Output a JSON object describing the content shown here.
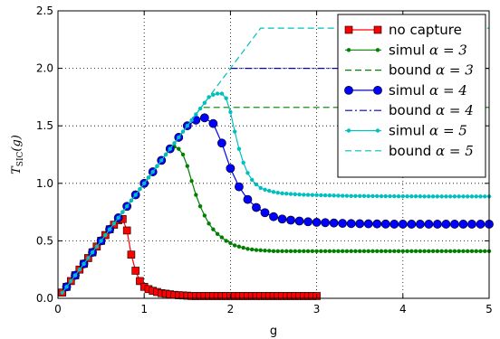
{
  "chart_data": {
    "type": "line",
    "xlabel": "g",
    "ylabel": "T",
    "ylabel_sub": "SIC",
    "ylabel_arg": "(g)",
    "xlim": [
      0,
      5
    ],
    "ylim": [
      0,
      2.5
    ],
    "x_ticks": [
      0,
      1,
      2,
      3,
      4,
      5
    ],
    "x_tick_labels": [
      "0",
      "1",
      "2",
      "3",
      "4",
      "5"
    ],
    "y_ticks": [
      0,
      0.5,
      1.0,
      1.5,
      2.0,
      2.5
    ],
    "y_tick_labels": [
      "0.0",
      "0.5",
      "1.0",
      "1.5",
      "2.0",
      "2.5"
    ],
    "grid": true,
    "legend_position": "top-right",
    "series": [
      {
        "name": "no capture",
        "legend_text": "no capture",
        "legend_math": "",
        "style": "line-square",
        "color": "#ff0000",
        "x": [
          0.05,
          0.1,
          0.15,
          0.2,
          0.25,
          0.3,
          0.35,
          0.4,
          0.45,
          0.5,
          0.55,
          0.6,
          0.65,
          0.7,
          0.75,
          0.8,
          0.85,
          0.9,
          0.95,
          1.0,
          1.05,
          1.1,
          1.15,
          1.2,
          1.25,
          1.3,
          1.35,
          1.4,
          1.45,
          1.5,
          1.55,
          1.6,
          1.65,
          1.7,
          1.75,
          1.8,
          1.85,
          1.9,
          1.95,
          2.0,
          2.05,
          2.1,
          2.15,
          2.2,
          2.25,
          2.3,
          2.35,
          2.4,
          2.45,
          2.5,
          2.55,
          2.6,
          2.65,
          2.7,
          2.75,
          2.8,
          2.85,
          2.9,
          2.95,
          3.0
        ],
        "y": [
          0.05,
          0.1,
          0.15,
          0.2,
          0.25,
          0.3,
          0.35,
          0.4,
          0.45,
          0.5,
          0.55,
          0.6,
          0.64,
          0.68,
          0.69,
          0.59,
          0.38,
          0.24,
          0.15,
          0.1,
          0.08,
          0.065,
          0.055,
          0.045,
          0.04,
          0.035,
          0.03,
          0.027,
          0.025,
          0.023,
          0.02,
          0.02,
          0.02,
          0.02,
          0.02,
          0.02,
          0.02,
          0.02,
          0.02,
          0.02,
          0.02,
          0.02,
          0.02,
          0.02,
          0.02,
          0.02,
          0.02,
          0.02,
          0.02,
          0.02,
          0.02,
          0.02,
          0.02,
          0.02,
          0.02,
          0.02,
          0.02,
          0.02,
          0.02,
          0.02
        ]
      },
      {
        "name": "simul alpha=3",
        "legend_text": "simul ",
        "legend_math": "α = 3",
        "style": "line-dot",
        "color": "#008000",
        "x": [
          0.05,
          0.1,
          0.15,
          0.2,
          0.25,
          0.3,
          0.35,
          0.4,
          0.45,
          0.5,
          0.55,
          0.6,
          0.65,
          0.7,
          0.75,
          0.8,
          0.85,
          0.9,
          0.95,
          1.0,
          1.05,
          1.1,
          1.15,
          1.2,
          1.25,
          1.3,
          1.35,
          1.4,
          1.45,
          1.5,
          1.55,
          1.6,
          1.65,
          1.7,
          1.75,
          1.8,
          1.85,
          1.9,
          1.95,
          2.0,
          2.05,
          2.1,
          2.15,
          2.2,
          2.25,
          2.3,
          2.35,
          2.4,
          2.45,
          2.5,
          2.55,
          2.6,
          2.65,
          2.7,
          2.75,
          2.8,
          2.85,
          2.9,
          2.95,
          3.0,
          3.05,
          3.1,
          3.15,
          3.2,
          3.25,
          3.3,
          3.35,
          3.4,
          3.45,
          3.5,
          3.55,
          3.6,
          3.65,
          3.7,
          3.75,
          3.8,
          3.85,
          3.9,
          3.95,
          4.0,
          4.05,
          4.1,
          4.15,
          4.2,
          4.25,
          4.3,
          4.35,
          4.4,
          4.45,
          4.5,
          4.55,
          4.6,
          4.65,
          4.7,
          4.75,
          4.8,
          4.85,
          4.9,
          4.95,
          5.0
        ],
        "y": [
          0.05,
          0.1,
          0.15,
          0.2,
          0.25,
          0.3,
          0.35,
          0.4,
          0.45,
          0.5,
          0.55,
          0.6,
          0.65,
          0.7,
          0.75,
          0.8,
          0.85,
          0.9,
          0.95,
          1.0,
          1.05,
          1.1,
          1.15,
          1.2,
          1.25,
          1.3,
          1.32,
          1.3,
          1.25,
          1.15,
          1.02,
          0.9,
          0.8,
          0.72,
          0.65,
          0.6,
          0.56,
          0.53,
          0.5,
          0.48,
          0.46,
          0.45,
          0.44,
          0.43,
          0.425,
          0.42,
          0.418,
          0.415,
          0.413,
          0.41,
          0.41,
          0.41,
          0.41,
          0.41,
          0.41,
          0.41,
          0.41,
          0.41,
          0.41,
          0.41,
          0.41,
          0.41,
          0.41,
          0.41,
          0.41,
          0.41,
          0.41,
          0.41,
          0.41,
          0.41,
          0.41,
          0.41,
          0.41,
          0.41,
          0.41,
          0.41,
          0.41,
          0.41,
          0.41,
          0.41,
          0.41,
          0.41,
          0.41,
          0.41,
          0.41,
          0.41,
          0.41,
          0.41,
          0.41,
          0.41,
          0.41,
          0.41,
          0.41,
          0.41,
          0.41,
          0.41,
          0.41,
          0.41,
          0.41,
          0.41
        ]
      },
      {
        "name": "bound alpha=3",
        "legend_text": "bound ",
        "legend_math": "α = 3",
        "style": "dashed",
        "color": "#008000",
        "x": [
          1.4,
          1.66,
          5.0
        ],
        "y": [
          1.4,
          1.66,
          1.66
        ]
      },
      {
        "name": "simul alpha=4",
        "legend_text": "simul ",
        "legend_math": "α = 4",
        "style": "line-circle",
        "color": "#0000ff",
        "x": [
          0.1,
          0.2,
          0.3,
          0.4,
          0.5,
          0.6,
          0.7,
          0.8,
          0.9,
          1.0,
          1.1,
          1.2,
          1.3,
          1.4,
          1.5,
          1.6,
          1.7,
          1.8,
          1.9,
          2.0,
          2.1,
          2.2,
          2.3,
          2.4,
          2.5,
          2.6,
          2.7,
          2.8,
          2.9,
          3.0,
          3.1,
          3.2,
          3.3,
          3.4,
          3.5,
          3.6,
          3.7,
          3.8,
          3.9,
          4.0,
          4.1,
          4.2,
          4.3,
          4.4,
          4.5,
          4.6,
          4.7,
          4.8,
          4.9,
          5.0
        ],
        "y": [
          0.1,
          0.2,
          0.3,
          0.4,
          0.5,
          0.6,
          0.7,
          0.8,
          0.9,
          1.0,
          1.1,
          1.2,
          1.3,
          1.4,
          1.5,
          1.55,
          1.57,
          1.52,
          1.35,
          1.13,
          0.97,
          0.86,
          0.79,
          0.745,
          0.71,
          0.69,
          0.68,
          0.672,
          0.666,
          0.661,
          0.658,
          0.655,
          0.652,
          0.65,
          0.649,
          0.648,
          0.647,
          0.646,
          0.645,
          0.645,
          0.645,
          0.645,
          0.645,
          0.645,
          0.645,
          0.645,
          0.645,
          0.645,
          0.645,
          0.645
        ]
      },
      {
        "name": "bound alpha=4",
        "legend_text": "bound ",
        "legend_math": "α = 4",
        "style": "dashdot",
        "color": "#0000cc",
        "x": [
          2.0,
          5.0
        ],
        "y": [
          2.0,
          2.0
        ]
      },
      {
        "name": "simul alpha=5",
        "legend_text": "simul ",
        "legend_math": "α = 5",
        "style": "line-dot",
        "color": "#00bfbf",
        "x": [
          0.05,
          0.1,
          0.15,
          0.2,
          0.25,
          0.3,
          0.35,
          0.4,
          0.45,
          0.5,
          0.55,
          0.6,
          0.65,
          0.7,
          0.75,
          0.8,
          0.85,
          0.9,
          0.95,
          1.0,
          1.05,
          1.1,
          1.15,
          1.2,
          1.25,
          1.3,
          1.35,
          1.4,
          1.45,
          1.5,
          1.55,
          1.6,
          1.65,
          1.7,
          1.75,
          1.8,
          1.85,
          1.9,
          1.95,
          2.0,
          2.05,
          2.1,
          2.15,
          2.2,
          2.25,
          2.3,
          2.35,
          2.4,
          2.45,
          2.5,
          2.55,
          2.6,
          2.65,
          2.7,
          2.75,
          2.8,
          2.85,
          2.9,
          2.95,
          3.0,
          3.05,
          3.1,
          3.15,
          3.2,
          3.25,
          3.3,
          3.35,
          3.4,
          3.45,
          3.5,
          3.55,
          3.6,
          3.65,
          3.7,
          3.75,
          3.8,
          3.85,
          3.9,
          3.95,
          4.0,
          4.05,
          4.1,
          4.15,
          4.2,
          4.25,
          4.3,
          4.35,
          4.4,
          4.45,
          4.5,
          4.55,
          4.6,
          4.65,
          4.7,
          4.75,
          4.8,
          4.85,
          4.9,
          4.95,
          5.0
        ],
        "y": [
          0.05,
          0.1,
          0.15,
          0.2,
          0.25,
          0.3,
          0.35,
          0.4,
          0.45,
          0.5,
          0.55,
          0.6,
          0.65,
          0.7,
          0.75,
          0.8,
          0.85,
          0.9,
          0.95,
          1.0,
          1.05,
          1.1,
          1.15,
          1.2,
          1.25,
          1.3,
          1.35,
          1.4,
          1.45,
          1.5,
          1.55,
          1.6,
          1.65,
          1.7,
          1.75,
          1.77,
          1.78,
          1.78,
          1.74,
          1.62,
          1.45,
          1.3,
          1.18,
          1.09,
          1.03,
          0.99,
          0.96,
          0.945,
          0.935,
          0.925,
          0.918,
          0.913,
          0.91,
          0.907,
          0.905,
          0.903,
          0.901,
          0.9,
          0.899,
          0.898,
          0.897,
          0.896,
          0.895,
          0.894,
          0.893,
          0.892,
          0.891,
          0.89,
          0.89,
          0.89,
          0.89,
          0.889,
          0.889,
          0.889,
          0.888,
          0.888,
          0.888,
          0.888,
          0.887,
          0.887,
          0.887,
          0.887,
          0.887,
          0.887,
          0.886,
          0.886,
          0.886,
          0.886,
          0.886,
          0.886,
          0.886,
          0.886,
          0.886,
          0.886,
          0.886,
          0.886,
          0.886,
          0.886,
          0.886,
          0.886
        ]
      },
      {
        "name": "bound alpha=5",
        "legend_text": "bound ",
        "legend_math": "α = 5",
        "style": "dashed",
        "color": "#00bfbf",
        "x": [
          1.5,
          2.35,
          5.0
        ],
        "y": [
          1.5,
          2.35,
          2.35
        ]
      }
    ]
  }
}
